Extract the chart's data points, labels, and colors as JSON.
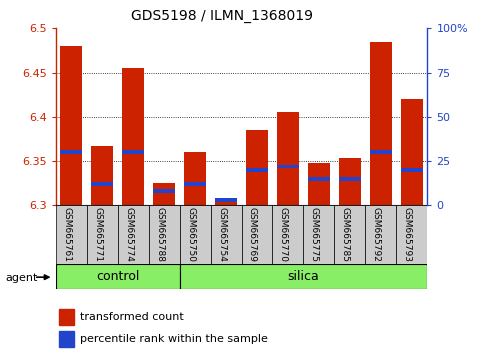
{
  "title": "GDS5198 / ILMN_1368019",
  "samples": [
    "GSM665761",
    "GSM665771",
    "GSM665774",
    "GSM665788",
    "GSM665750",
    "GSM665754",
    "GSM665769",
    "GSM665770",
    "GSM665775",
    "GSM665785",
    "GSM665792",
    "GSM665793"
  ],
  "transformed_count": [
    6.48,
    6.367,
    6.455,
    6.325,
    6.36,
    6.305,
    6.385,
    6.405,
    6.348,
    6.354,
    6.485,
    6.42
  ],
  "percentile_rank": [
    30,
    12,
    30,
    8,
    12,
    3,
    20,
    22,
    15,
    15,
    30,
    20
  ],
  "ymin": 6.3,
  "ymax": 6.5,
  "yticks": [
    6.3,
    6.35,
    6.4,
    6.45,
    6.5
  ],
  "right_yticks": [
    0,
    25,
    50,
    75,
    100
  ],
  "right_yticklabels": [
    "0",
    "25",
    "50",
    "75",
    "100%"
  ],
  "bar_color": "#cc2200",
  "blue_color": "#2244cc",
  "control_n": 4,
  "silica_n": 8,
  "group_bg_color": "#88ee66",
  "tick_label_bg": "#cccccc",
  "legend_red_label": "transformed count",
  "legend_blue_label": "percentile rank within the sample",
  "agent_label": "agent"
}
